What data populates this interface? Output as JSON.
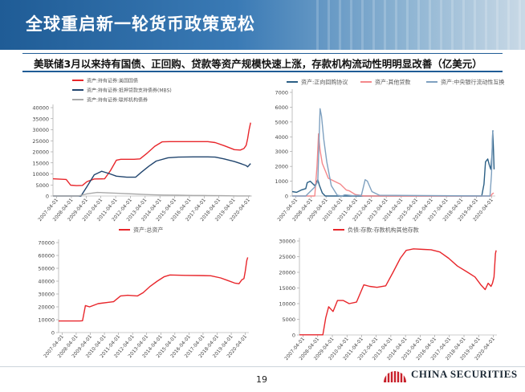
{
  "header": {
    "title": "全球重启新一轮货币政策宽松"
  },
  "subtitle": "美联储3月以来持有国债、正回购、贷款等资产规模快速上涨，存款机构流动性明明显改善（亿美元）",
  "page_number": "19",
  "logo": {
    "text": "CHINA SECURITIES"
  },
  "colors": {
    "red": "#e8262b",
    "navy": "#21456e",
    "gray": "#aaaaaa",
    "pink": "#f4888b",
    "steel": "#7fa1c0",
    "teal": "#2b5f85"
  },
  "chart_data": [
    {
      "type": "line",
      "legend": [
        "资产:持有证券:美国国债",
        "资产:持有证券:抵押贷款支持债券(MBS)",
        "资产:持有证券:联邦机构债券"
      ],
      "yticks": [
        0,
        5000,
        10000,
        15000,
        20000,
        25000,
        30000,
        35000,
        40000
      ],
      "ylim": [
        0,
        40000
      ],
      "xlim": [
        2007.0,
        2020.5
      ],
      "xticks": [
        "2007-04-01",
        "2008-04-01",
        "2009-04-01",
        "2010-04-01",
        "2011-04-01",
        "2012-04-01",
        "2013-04-01",
        "2014-04-01",
        "2015-04-01",
        "2016-04-01",
        "2017-04-01",
        "2018-04-01",
        "2019-04-01",
        "2020-04-01"
      ],
      "series": [
        {
          "name": "资产:持有证券:美国国债",
          "color": "#e8262b",
          "x": [
            2007.0,
            2007.9,
            2008.2,
            2008.6,
            2009.0,
            2009.3,
            2009.8,
            2010.5,
            2010.9,
            2011.3,
            2011.6,
            2012.5,
            2012.9,
            2013.4,
            2013.9,
            2014.4,
            2014.9,
            2015.5,
            2016.5,
            2017.5,
            2018.0,
            2018.6,
            2019.3,
            2019.7,
            2019.95,
            2020.1,
            2020.2,
            2020.3,
            2020.4
          ],
          "values": [
            7800,
            7500,
            4900,
            4700,
            4800,
            6500,
            7700,
            7800,
            11500,
            16200,
            16600,
            16600,
            16800,
            19500,
            22500,
            24500,
            24600,
            24600,
            24600,
            24600,
            24200,
            22800,
            21000,
            20800,
            21500,
            23000,
            26000,
            30000,
            33200
          ]
        },
        {
          "name": "资产:持有证券:抵押贷款支持债券(MBS)",
          "color": "#21456e",
          "x": [
            2007.0,
            2008.9,
            2009.3,
            2009.8,
            2010.3,
            2010.8,
            2011.3,
            2012.0,
            2012.6,
            2013.0,
            2013.5,
            2014.0,
            2014.8,
            2015.5,
            2016.5,
            2017.5,
            2018.0,
            2018.6,
            2019.3,
            2019.8,
            2020.1,
            2020.2,
            2020.4
          ],
          "values": [
            0,
            0,
            4200,
            9600,
            11200,
            10200,
            9000,
            8500,
            8500,
            10800,
            13500,
            15800,
            17300,
            17600,
            17700,
            17700,
            17600,
            16800,
            15600,
            14500,
            13800,
            13200,
            14700
          ]
        },
        {
          "name": "资产:持有证券:联邦机构债券",
          "color": "#aaaaaa",
          "x": [
            2007.0,
            2008.7,
            2009.3,
            2010.0,
            2010.5,
            2011.5,
            2012.5,
            2013.5,
            2014.5,
            2015.5,
            2016.5,
            2017.5,
            2018.5,
            2019.5,
            2020.4
          ],
          "values": [
            0,
            0,
            1000,
            1600,
            1500,
            1200,
            900,
            600,
            450,
            350,
            250,
            200,
            150,
            50,
            20
          ]
        }
      ]
    },
    {
      "type": "line",
      "legend": [
        "资产:正向回购协议",
        "资产:其他贷款",
        "资产:中央银行流动性互换"
      ],
      "yticks": [
        0,
        1000,
        2000,
        3000,
        4000,
        5000,
        6000,
        7000
      ],
      "ylim": [
        0,
        7000
      ],
      "xlim": [
        2007.0,
        2020.5
      ],
      "xticks": [
        "2007-04-01",
        "2008-04-01",
        "2009-04-01",
        "2010-04-01",
        "2011-04-01",
        "2012-04-01",
        "2013-04-01",
        "2014-04-01",
        "2015-04-01",
        "2016-04-01",
        "2017-04-01",
        "2018-04-01",
        "2019-04-01",
        "2020-04-01"
      ],
      "series": [
        {
          "name": "资产:正向回购协议",
          "color": "#2b5f85",
          "x": [
            2007.0,
            2007.3,
            2007.6,
            2007.9,
            2008.0,
            2008.2,
            2008.5,
            2008.7,
            2008.8,
            2009.0,
            2009.2,
            2019.6,
            2019.75,
            2019.85,
            2020.0,
            2020.1,
            2020.2,
            2020.28,
            2020.33,
            2020.38,
            2020.42
          ],
          "values": [
            300,
            250,
            400,
            500,
            900,
            1000,
            700,
            1100,
            750,
            200,
            0,
            0,
            800,
            2300,
            2500,
            2100,
            1800,
            2800,
            4400,
            3000,
            1800
          ]
        },
        {
          "name": "资产:其他贷款",
          "color": "#f4888b",
          "x": [
            2007.0,
            2008.5,
            2008.65,
            2008.75,
            2008.85,
            2009.0,
            2009.4,
            2009.8,
            2010.2,
            2010.6,
            2010.8,
            2011.2,
            2011.8,
            2020.2,
            2020.3,
            2020.4
          ],
          "values": [
            0,
            0,
            2000,
            4200,
            3100,
            2200,
            1200,
            1000,
            800,
            400,
            350,
            100,
            0,
            0,
            150,
            200
          ]
        },
        {
          "name": "资产:中央银行流动性互换",
          "color": "#7fa1c0",
          "x": [
            2007.0,
            2007.9,
            2008.1,
            2008.5,
            2008.7,
            2008.85,
            2008.95,
            2009.1,
            2009.3,
            2009.6,
            2010.0,
            2010.3,
            2010.5,
            2011.0,
            2011.6,
            2011.85,
            2012.0,
            2012.3,
            2012.8,
            2020.15,
            2020.25,
            2020.33,
            2020.4
          ],
          "values": [
            0,
            0,
            200,
            600,
            1000,
            5900,
            5400,
            3800,
            2300,
            700,
            50,
            0,
            80,
            20,
            50,
            1100,
            1000,
            300,
            50,
            0,
            1500,
            4400,
            4400
          ]
        }
      ]
    },
    {
      "type": "line",
      "legend": [
        "资产:总资产"
      ],
      "yticks": [
        0,
        10000,
        20000,
        30000,
        40000,
        50000,
        60000,
        70000
      ],
      "ylim": [
        0,
        70000
      ],
      "xlim": [
        2007.0,
        2020.5
      ],
      "xticks": [
        "2007-04-01",
        "2008-04-01",
        "2009-04-01",
        "2010-04-01",
        "2011-04-01",
        "2012-04-01",
        "2013-04-01",
        "2014-04-01",
        "2015-04-01",
        "2016-04-01",
        "2017-04-01",
        "2018-04-01",
        "2019-04-01",
        "2020-04-01"
      ],
      "series": [
        {
          "name": "资产:总资产",
          "color": "#e8262b",
          "x": [
            2007.0,
            2008.5,
            2008.7,
            2008.9,
            2009.2,
            2009.8,
            2010.5,
            2010.9,
            2011.4,
            2011.9,
            2012.6,
            2013.0,
            2013.5,
            2014.0,
            2014.5,
            2014.9,
            2016.0,
            2017.0,
            2017.8,
            2018.5,
            2019.0,
            2019.5,
            2019.8,
            2020.0,
            2020.15,
            2020.25,
            2020.35,
            2020.42
          ],
          "values": [
            9000,
            9000,
            9200,
            21000,
            20000,
            22500,
            23500,
            24000,
            28500,
            29000,
            28500,
            31000,
            36000,
            40000,
            43500,
            44800,
            44500,
            44400,
            44200,
            42500,
            40500,
            38500,
            38000,
            41000,
            42000,
            48000,
            56000,
            58500
          ]
        }
      ]
    },
    {
      "type": "line",
      "legend": [
        "负债:存款:存款机构其他存款"
      ],
      "yticks": [
        0,
        5000,
        10000,
        15000,
        20000,
        25000,
        30000
      ],
      "ylim": [
        0,
        30000
      ],
      "xlim": [
        2007.0,
        2020.5
      ],
      "xticks": [
        "2007-04-01",
        "2008-04-01",
        "2009-04-01",
        "2010-04-01",
        "2011-04-01",
        "2012-04-01",
        "2013-04-01",
        "2014-04-01",
        "2015-04-01",
        "2016-04-01",
        "2017-04-01",
        "2018-04-01",
        "2019-04-01",
        "2020-04-01"
      ],
      "series": [
        {
          "name": "负债:存款:存款机构其他存款",
          "color": "#e8262b",
          "x": [
            2007.0,
            2008.6,
            2008.8,
            2009.0,
            2009.3,
            2009.6,
            2010.0,
            2010.4,
            2010.9,
            2011.4,
            2011.8,
            2012.3,
            2012.9,
            2013.4,
            2013.9,
            2014.3,
            2014.8,
            2015.5,
            2016.0,
            2016.6,
            2017.2,
            2017.8,
            2018.5,
            2019.0,
            2019.4,
            2019.7,
            2019.9,
            2020.1,
            2020.2,
            2020.3,
            2020.4,
            2020.45
          ],
          "values": [
            50,
            50,
            5500,
            9000,
            7500,
            11000,
            11000,
            10000,
            10500,
            16000,
            15500,
            15200,
            15700,
            20000,
            24500,
            27000,
            27500,
            27300,
            27200,
            26500,
            24500,
            22000,
            20000,
            18500,
            16000,
            14500,
            16500,
            15500,
            16500,
            18500,
            26000,
            27000
          ]
        }
      ]
    }
  ]
}
